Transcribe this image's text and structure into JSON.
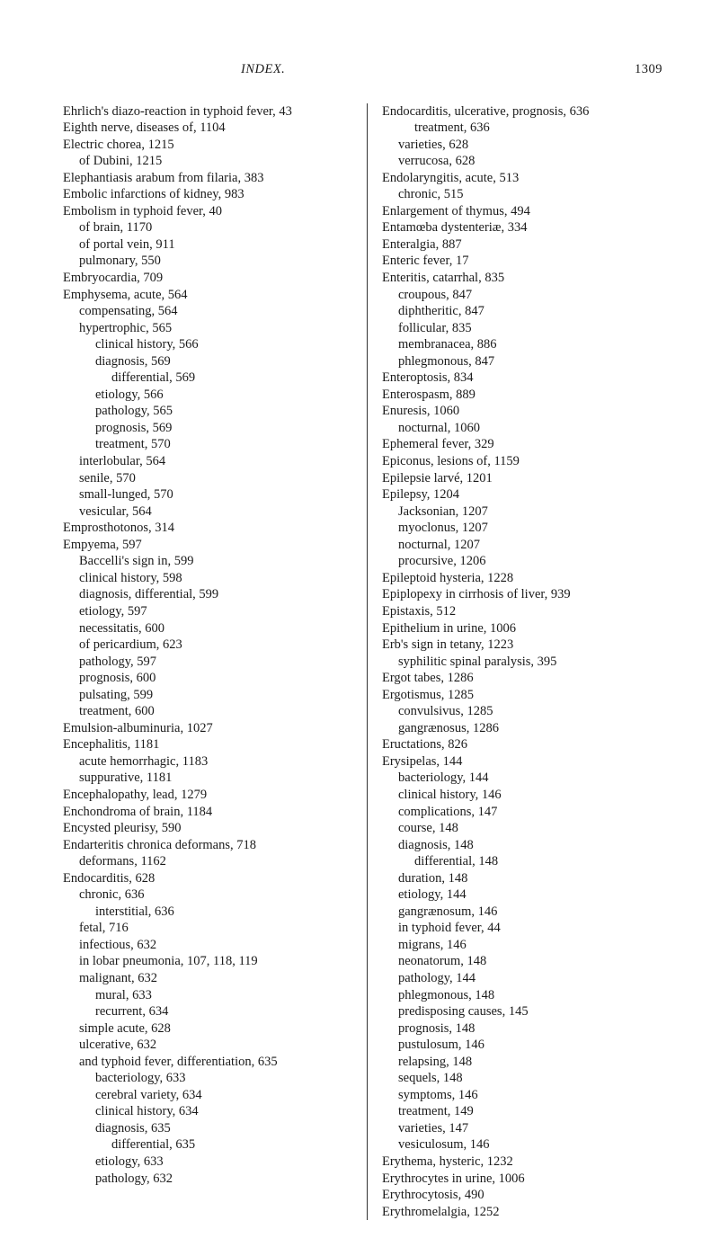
{
  "header": {
    "title": "INDEX.",
    "page_number": "1309"
  },
  "left_column": [
    {
      "indent": "hang0",
      "text": "Ehrlich's diazo-reaction in typhoid fever, 43"
    },
    {
      "indent": "i0",
      "text": "Eighth nerve, diseases of, 1104"
    },
    {
      "indent": "i0",
      "text": "Electric chorea, 1215"
    },
    {
      "indent": "i1",
      "text": "of Dubini, 1215"
    },
    {
      "indent": "i0",
      "text": "Elephantiasis arabum from filaria, 383"
    },
    {
      "indent": "i0",
      "text": "Embolic infarctions of kidney, 983"
    },
    {
      "indent": "i0",
      "text": "Embolism in typhoid fever, 40"
    },
    {
      "indent": "i1",
      "text": "of brain, 1170"
    },
    {
      "indent": "i1",
      "text": "of portal vein, 911"
    },
    {
      "indent": "i1",
      "text": "pulmonary, 550"
    },
    {
      "indent": "i0",
      "text": "Embryocardia, 709"
    },
    {
      "indent": "i0",
      "text": "Emphysema, acute, 564"
    },
    {
      "indent": "i1",
      "text": "compensating, 564"
    },
    {
      "indent": "i1",
      "text": "hypertrophic, 565"
    },
    {
      "indent": "i2",
      "text": "clinical history, 566"
    },
    {
      "indent": "i2",
      "text": "diagnosis, 569"
    },
    {
      "indent": "i3",
      "text": "differential, 569"
    },
    {
      "indent": "i2",
      "text": "etiology, 566"
    },
    {
      "indent": "i2",
      "text": "pathology, 565"
    },
    {
      "indent": "i2",
      "text": "prognosis, 569"
    },
    {
      "indent": "i2",
      "text": "treatment, 570"
    },
    {
      "indent": "i1",
      "text": "interlobular, 564"
    },
    {
      "indent": "i1",
      "text": "senile, 570"
    },
    {
      "indent": "i1",
      "text": "small-lunged, 570"
    },
    {
      "indent": "i1",
      "text": "vesicular, 564"
    },
    {
      "indent": "i0",
      "text": "Emprosthotonos, 314"
    },
    {
      "indent": "i0",
      "text": "Empyema, 597"
    },
    {
      "indent": "i1",
      "text": "Baccelli's sign in, 599"
    },
    {
      "indent": "i1",
      "text": "clinical history, 598"
    },
    {
      "indent": "i1",
      "text": "diagnosis, differential, 599"
    },
    {
      "indent": "i1",
      "text": "etiology, 597"
    },
    {
      "indent": "i1",
      "text": "necessitatis, 600"
    },
    {
      "indent": "i1",
      "text": "of pericardium, 623"
    },
    {
      "indent": "i1",
      "text": "pathology, 597"
    },
    {
      "indent": "i1",
      "text": "prognosis, 600"
    },
    {
      "indent": "i1",
      "text": "pulsating, 599"
    },
    {
      "indent": "i1",
      "text": "treatment, 600"
    },
    {
      "indent": "i0",
      "text": "Emulsion-albuminuria, 1027"
    },
    {
      "indent": "i0",
      "text": "Encephalitis, 1181"
    },
    {
      "indent": "i1",
      "text": "acute hemorrhagic, 1183"
    },
    {
      "indent": "i1",
      "text": "suppurative, 1181"
    },
    {
      "indent": "i0",
      "text": "Encephalopathy, lead, 1279"
    },
    {
      "indent": "i0",
      "text": "Enchondroma of brain, 1184"
    },
    {
      "indent": "i0",
      "text": "Encysted pleurisy, 590"
    },
    {
      "indent": "i0",
      "text": "Endarteritis chronica deformans, 718"
    },
    {
      "indent": "i1",
      "text": "deformans, 1162"
    },
    {
      "indent": "i0",
      "text": "Endocarditis, 628"
    },
    {
      "indent": "i1",
      "text": "chronic, 636"
    },
    {
      "indent": "i2",
      "text": "interstitial, 636"
    },
    {
      "indent": "i1",
      "text": "fetal, 716"
    },
    {
      "indent": "i1",
      "text": "infectious, 632"
    },
    {
      "indent": "i1",
      "text": "in lobar pneumonia, 107, 118, 119"
    },
    {
      "indent": "i1",
      "text": "malignant, 632"
    },
    {
      "indent": "i2",
      "text": "mural, 633"
    },
    {
      "indent": "i2",
      "text": "recurrent, 634"
    },
    {
      "indent": "i1",
      "text": "simple acute, 628"
    },
    {
      "indent": "i1",
      "text": "ulcerative, 632"
    },
    {
      "indent": "hang1",
      "text": "and typhoid fever, differentiation, 635"
    },
    {
      "indent": "i2",
      "text": "bacteriology, 633"
    },
    {
      "indent": "i2",
      "text": "cerebral variety, 634"
    },
    {
      "indent": "i2",
      "text": "clinical history, 634"
    },
    {
      "indent": "i2",
      "text": "diagnosis, 635"
    },
    {
      "indent": "i3",
      "text": "differential, 635"
    },
    {
      "indent": "i2",
      "text": "etiology, 633"
    },
    {
      "indent": "i2",
      "text": "pathology, 632"
    }
  ],
  "right_column": [
    {
      "indent": "i0",
      "text": "Endocarditis, ulcerative, prognosis, 636"
    },
    {
      "indent": "i2",
      "text": "treatment, 636"
    },
    {
      "indent": "i1",
      "text": "varieties, 628"
    },
    {
      "indent": "i1",
      "text": "verrucosa, 628"
    },
    {
      "indent": "i0",
      "text": "Endolaryngitis, acute, 513"
    },
    {
      "indent": "i1",
      "text": "chronic, 515"
    },
    {
      "indent": "i0",
      "text": "Enlargement of thymus, 494"
    },
    {
      "indent": "i0",
      "text": "Entamœba dystenteriæ, 334"
    },
    {
      "indent": "i0",
      "text": "Enteralgia, 887"
    },
    {
      "indent": "i0",
      "text": "Enteric fever, 17"
    },
    {
      "indent": "i0",
      "text": "Enteritis, catarrhal, 835"
    },
    {
      "indent": "i1",
      "text": "croupous, 847"
    },
    {
      "indent": "i1",
      "text": "diphtheritic, 847"
    },
    {
      "indent": "i1",
      "text": "follicular, 835"
    },
    {
      "indent": "i1",
      "text": "membranacea, 886"
    },
    {
      "indent": "i1",
      "text": "phlegmonous, 847"
    },
    {
      "indent": "i0",
      "text": "Enteroptosis, 834"
    },
    {
      "indent": "i0",
      "text": "Enterospasm, 889"
    },
    {
      "indent": "i0",
      "text": "Enuresis, 1060"
    },
    {
      "indent": "i1",
      "text": "nocturnal, 1060"
    },
    {
      "indent": "i0",
      "text": "Ephemeral fever, 329"
    },
    {
      "indent": "i0",
      "text": "Epiconus, lesions of, 1159"
    },
    {
      "indent": "i0",
      "text": "Epilepsie larvé, 1201"
    },
    {
      "indent": "i0",
      "text": "Epilepsy, 1204"
    },
    {
      "indent": "i1",
      "text": "Jacksonian, 1207"
    },
    {
      "indent": "i1",
      "text": "myoclonus, 1207"
    },
    {
      "indent": "i1",
      "text": "nocturnal, 1207"
    },
    {
      "indent": "i1",
      "text": "procursive, 1206"
    },
    {
      "indent": "i0",
      "text": "Epileptoid hysteria, 1228"
    },
    {
      "indent": "i0",
      "text": "Epiplopexy in cirrhosis of liver, 939"
    },
    {
      "indent": "i0",
      "text": "Epistaxis, 512"
    },
    {
      "indent": "i0",
      "text": "Epithelium in urine, 1006"
    },
    {
      "indent": "i0",
      "text": "Erb's sign in tetany, 1223"
    },
    {
      "indent": "i1",
      "text": "syphilitic spinal paralysis, 395"
    },
    {
      "indent": "i0",
      "text": "Ergot tabes, 1286"
    },
    {
      "indent": "i0",
      "text": "Ergotismus, 1285"
    },
    {
      "indent": "i1",
      "text": "convulsivus, 1285"
    },
    {
      "indent": "i1",
      "text": "gangrænosus, 1286"
    },
    {
      "indent": "i0",
      "text": "Eructations, 826"
    },
    {
      "indent": "i0",
      "text": "Erysipelas, 144"
    },
    {
      "indent": "i1",
      "text": "bacteriology, 144"
    },
    {
      "indent": "i1",
      "text": "clinical history, 146"
    },
    {
      "indent": "i1",
      "text": "complications, 147"
    },
    {
      "indent": "i1",
      "text": "course, 148"
    },
    {
      "indent": "i1",
      "text": "diagnosis, 148"
    },
    {
      "indent": "i2",
      "text": "differential, 148"
    },
    {
      "indent": "i1",
      "text": "duration, 148"
    },
    {
      "indent": "i1",
      "text": "etiology, 144"
    },
    {
      "indent": "i1",
      "text": "gangrænosum, 146"
    },
    {
      "indent": "i1",
      "text": "in typhoid fever, 44"
    },
    {
      "indent": "i1",
      "text": "migrans, 146"
    },
    {
      "indent": "i1",
      "text": "neonatorum, 148"
    },
    {
      "indent": "i1",
      "text": "pathology, 144"
    },
    {
      "indent": "i1",
      "text": "phlegmonous, 148"
    },
    {
      "indent": "i1",
      "text": "predisposing causes, 145"
    },
    {
      "indent": "i1",
      "text": "prognosis, 148"
    },
    {
      "indent": "i1",
      "text": "pustulosum, 146"
    },
    {
      "indent": "i1",
      "text": "relapsing, 148"
    },
    {
      "indent": "i1",
      "text": "sequels, 148"
    },
    {
      "indent": "i1",
      "text": "symptoms, 146"
    },
    {
      "indent": "i1",
      "text": "treatment, 149"
    },
    {
      "indent": "i1",
      "text": "varieties, 147"
    },
    {
      "indent": "i1",
      "text": "vesiculosum, 146"
    },
    {
      "indent": "i0",
      "text": "Erythema, hysteric, 1232"
    },
    {
      "indent": "i0",
      "text": "Erythrocytes in urine, 1006"
    },
    {
      "indent": "i0",
      "text": "Erythrocytosis, 490"
    },
    {
      "indent": "i0",
      "text": "Erythromelalgia, 1252"
    }
  ]
}
